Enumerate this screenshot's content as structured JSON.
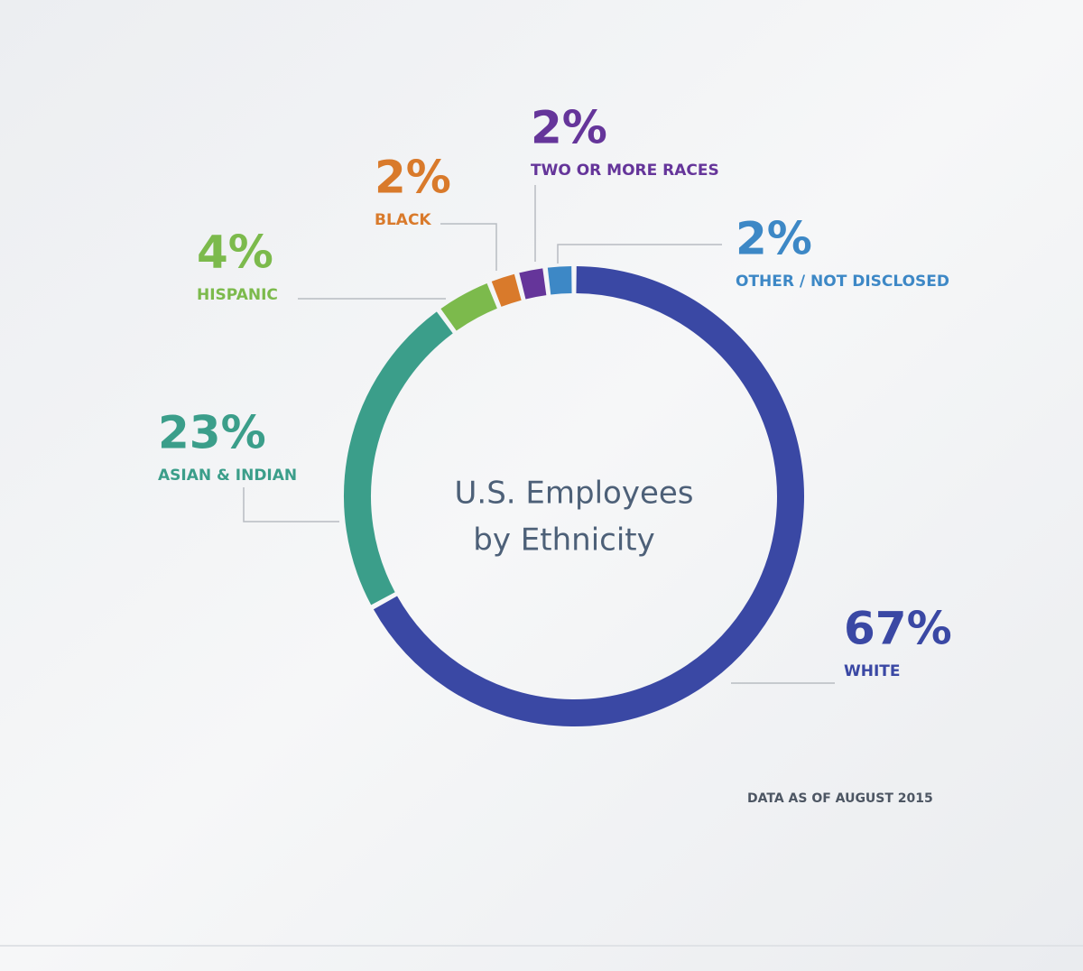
{
  "chart_data": {
    "type": "donut",
    "title": [
      "U.S. Employees",
      "by Ethnicity"
    ],
    "categories": [
      "WHITE",
      "ASIAN & INDIAN",
      "HISPANIC",
      "BLACK",
      "TWO OR MORE RACES",
      "OTHER / NOT DISCLOSED"
    ],
    "values": [
      67,
      23,
      4,
      2,
      2,
      2
    ],
    "value_labels": [
      "67%",
      "23%",
      "4%",
      "2%",
      "2%",
      "2%"
    ],
    "colors": [
      "#3a48a4",
      "#3b9e8a",
      "#7cba4c",
      "#d97a2b",
      "#65359a",
      "#3d88c6"
    ],
    "note": "DATA AS OF AUGUST 2015"
  }
}
